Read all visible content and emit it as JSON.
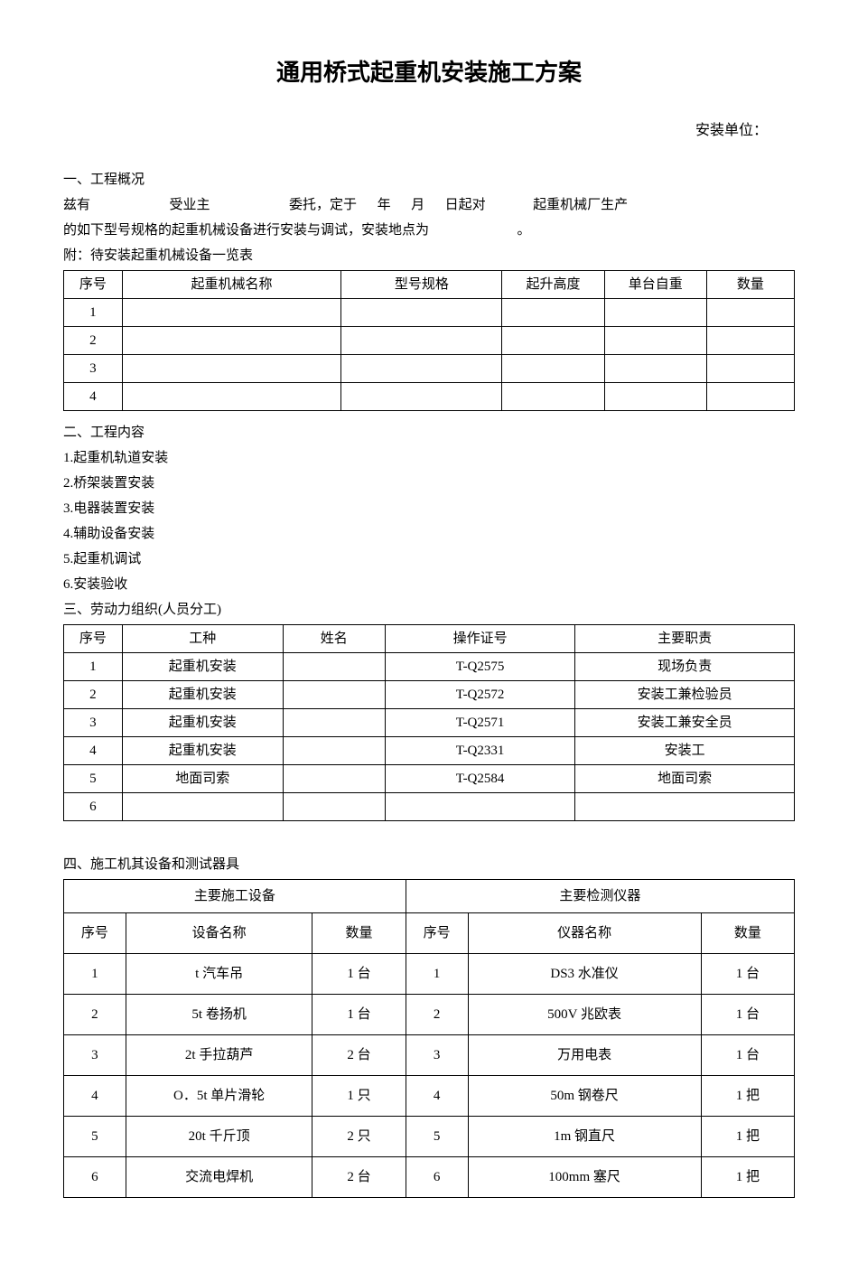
{
  "title": "通用桥式起重机安装施工方案",
  "install_unit_label": "安装单位：",
  "section1": {
    "heading": "一、工程概况",
    "line1_parts": [
      "兹有",
      "受业主",
      "委托，定于",
      "年",
      "月",
      "日起对",
      "起重机械厂生产"
    ],
    "line2": "的如下型号规格的起重机械设备进行安装与调试，安装地点为",
    "line2_end": "。",
    "attachment": "附：待安装起重机械设备一览表"
  },
  "table1": {
    "headers": [
      "序号",
      "起重机械名称",
      "型号规格",
      "起升高度",
      "单台自重",
      "数量"
    ],
    "rows": [
      [
        "1",
        "",
        "",
        "",
        "",
        ""
      ],
      [
        "2",
        "",
        "",
        "",
        "",
        ""
      ],
      [
        "3",
        "",
        "",
        "",
        "",
        ""
      ],
      [
        "4",
        "",
        "",
        "",
        "",
        ""
      ]
    ]
  },
  "section2": {
    "heading": "二、工程内容",
    "items": [
      "1.起重机轨道安装",
      "2.桥架装置安装",
      "3.电器装置安装",
      "4.辅助设备安装",
      "5.起重机调试",
      "6.安装验收"
    ]
  },
  "section3": {
    "heading": "三、劳动力组织(人员分工)"
  },
  "table2": {
    "headers": [
      "序号",
      "工种",
      "姓名",
      "操作证号",
      "主要职责"
    ],
    "rows": [
      [
        "1",
        "起重机安装",
        "",
        "T-Q2575",
        "现场负责"
      ],
      [
        "2",
        "起重机安装",
        "",
        "T-Q2572",
        "安装工兼检验员"
      ],
      [
        "3",
        "起重机安装",
        "",
        "T-Q2571",
        "安装工兼安全员"
      ],
      [
        "4",
        "起重机安装",
        "",
        "T-Q2331",
        "安装工"
      ],
      [
        "5",
        "地面司索",
        "",
        "T-Q2584",
        "地面司索"
      ],
      [
        "6",
        "",
        "",
        "",
        ""
      ]
    ]
  },
  "section4": {
    "heading": "四、施工机其设备和测试器具"
  },
  "table3": {
    "group_headers": [
      "主要施工设备",
      "主要检测仪器"
    ],
    "sub_headers": [
      "序号",
      "设备名称",
      "数量",
      "序号",
      "仪器名称",
      "数量"
    ],
    "rows": [
      [
        "1",
        "t 汽车吊",
        "1 台",
        "1",
        "DS3 水准仪",
        "1 台"
      ],
      [
        "2",
        "5t 卷扬机",
        "1 台",
        "2",
        "500V 兆欧表",
        "1 台"
      ],
      [
        "3",
        "2t 手拉葫芦",
        "2 台",
        "3",
        "万用电表",
        "1 台"
      ],
      [
        "4",
        "O．5t 单片滑轮",
        "1 只",
        "4",
        "50m 钢卷尺",
        "1 把"
      ],
      [
        "5",
        "20t 千斤顶",
        "2 只",
        "5",
        "1m 钢直尺",
        "1 把"
      ],
      [
        "6",
        "交流电焊机",
        "2 台",
        "6",
        "100mm 塞尺",
        "1 把"
      ]
    ]
  }
}
